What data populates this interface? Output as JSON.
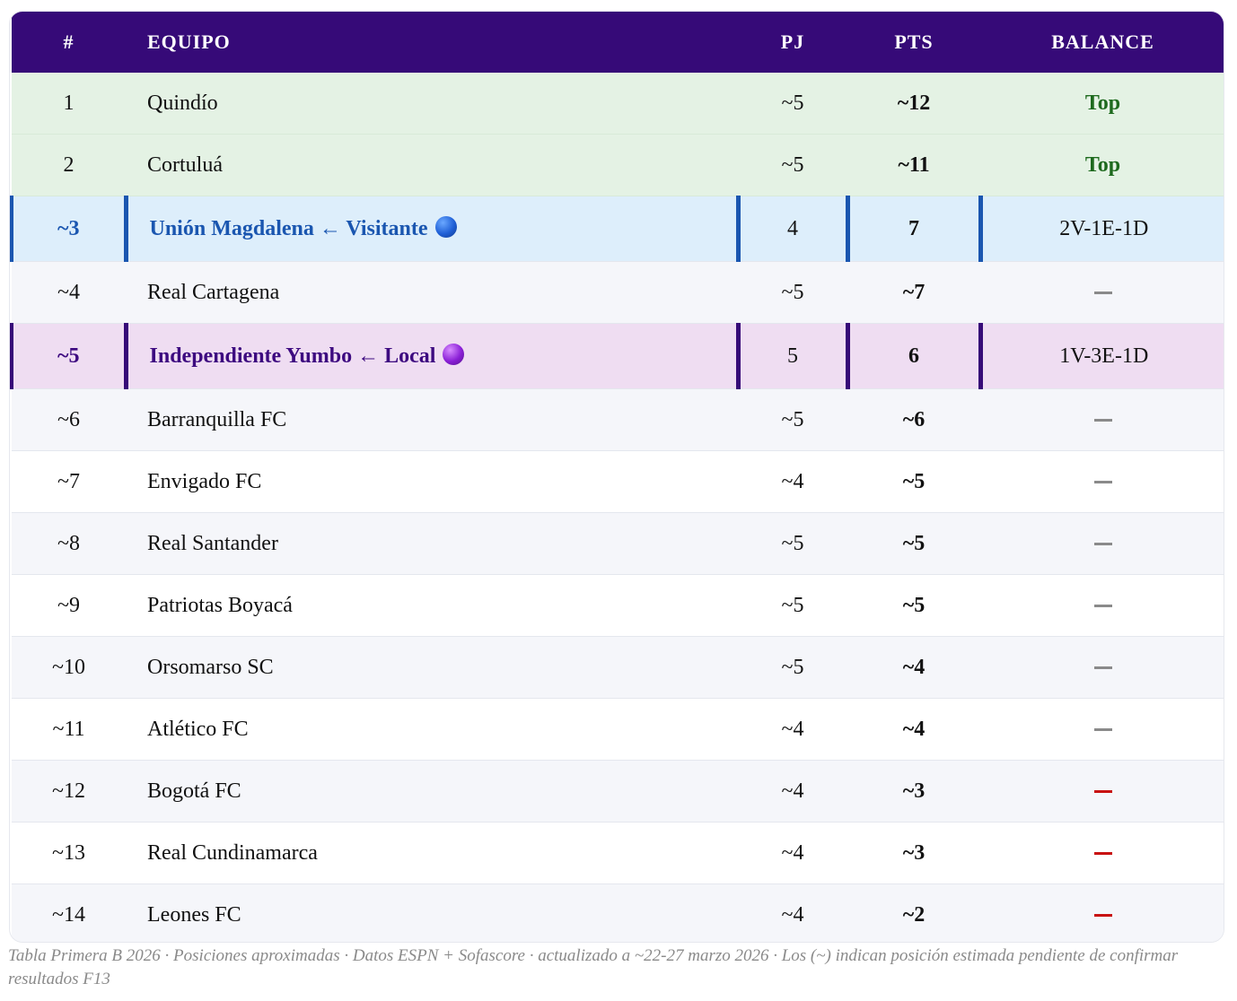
{
  "header": {
    "pos": "#",
    "team": "EQUIPO",
    "pj": "PJ",
    "pts": "PTS",
    "balance": "BALANCE"
  },
  "rows": [
    {
      "pos": "1",
      "team": "Quindío",
      "pj": "~5",
      "pts": "~12",
      "balance": "Top"
    },
    {
      "pos": "2",
      "team": "Cortuluá",
      "pj": "~5",
      "pts": "~11",
      "balance": "Top"
    },
    {
      "pos": "~3",
      "team": "Unión Magdalena ← Visitante",
      "pj": "4",
      "pts": "7",
      "balance": "2V-1E-1D"
    },
    {
      "pos": "~4",
      "team": "Real Cartagena",
      "pj": "~5",
      "pts": "~7",
      "balance": "—"
    },
    {
      "pos": "~5",
      "team": "Independiente Yumbo ← Local",
      "pj": "5",
      "pts": "6",
      "balance": "1V-3E-1D"
    },
    {
      "pos": "~6",
      "team": "Barranquilla FC",
      "pj": "~5",
      "pts": "~6",
      "balance": "—"
    },
    {
      "pos": "~7",
      "team": "Envigado FC",
      "pj": "~4",
      "pts": "~5",
      "balance": "—"
    },
    {
      "pos": "~8",
      "team": "Real Santander",
      "pj": "~5",
      "pts": "~5",
      "balance": "—"
    },
    {
      "pos": "~9",
      "team": "Patriotas Boyacá",
      "pj": "~5",
      "pts": "~5",
      "balance": "—"
    },
    {
      "pos": "~10",
      "team": "Orsomarso SC",
      "pj": "~5",
      "pts": "~4",
      "balance": "—"
    },
    {
      "pos": "~11",
      "team": "Atlético FC",
      "pj": "~4",
      "pts": "~4",
      "balance": "—"
    },
    {
      "pos": "~12",
      "team": "Bogotá FC",
      "pj": "~4",
      "pts": "~3",
      "balance": "—"
    },
    {
      "pos": "~13",
      "team": "Real Cundinamarca",
      "pj": "~4",
      "pts": "~3",
      "balance": "—"
    },
    {
      "pos": "~14",
      "team": "Leones FC",
      "pj": "~4",
      "pts": "~2",
      "balance": "—"
    }
  ],
  "caption": "Tabla Primera B 2026 · Posiciones aproximadas · Datos ESPN + Sofascore · actualizado a ~22-27 marzo 2026 · Los (~) indican posición estimada pendiente de confirmar resultados F13",
  "colors": {
    "header_bg": "#360a78",
    "top_row_bg": "#e4f2e4",
    "visitante_bg": "#ddeefb",
    "visitante_accent": "#1a56b0",
    "local_bg": "#efddf2",
    "local_accent": "#360a78",
    "negative_dash": "#c81010",
    "neutral_dash": "#8a8a8a"
  },
  "icons": {
    "visitante": "blue-circle-icon",
    "local": "purple-circle-icon"
  }
}
